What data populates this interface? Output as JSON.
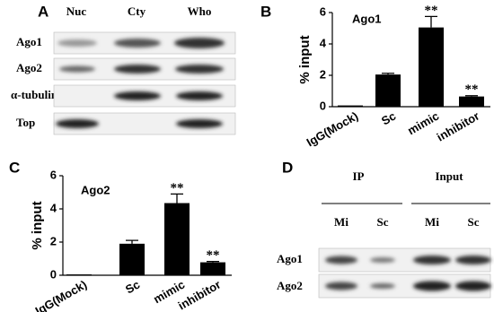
{
  "panels": [
    "A",
    "B",
    "C",
    "D"
  ],
  "blot_a": {
    "columns": [
      "Nuc",
      "Cty",
      "Who"
    ],
    "rows": [
      "Ago1",
      "Ago2",
      "α-tubulin",
      "Top"
    ]
  },
  "blot_d": {
    "groups": [
      "IP",
      "Input"
    ],
    "columns": [
      "Mi",
      "Sc",
      "Mi",
      "Sc"
    ],
    "rows": [
      "Ago1",
      "Ago2"
    ]
  },
  "chart_data": [
    {
      "type": "bar",
      "title": "Ago1",
      "y_label": "% input",
      "categories": [
        "IgG(Mock)",
        "Sc",
        "mimic",
        "inhibitor"
      ],
      "values": [
        0.08,
        2.05,
        5.05,
        0.65
      ],
      "errors": [
        0,
        0.08,
        0.7,
        0.05
      ],
      "color": "#000000",
      "ylim": [
        0,
        6
      ],
      "yticks": [
        0,
        2,
        4,
        6
      ],
      "annotations": [
        {
          "text": "**",
          "category": "mimic"
        },
        {
          "text": "**",
          "category": "inhibitor"
        }
      ]
    },
    {
      "type": "bar",
      "title": "Ago2",
      "y_label": "% input",
      "categories": [
        "IgG(Mock)",
        "Sc",
        "mimic",
        "inhibitor"
      ],
      "values": [
        0.05,
        1.9,
        4.35,
        0.78
      ],
      "errors": [
        0,
        0.2,
        0.55,
        0.05
      ],
      "color": "#000000",
      "ylim": [
        0,
        6
      ],
      "yticks": [
        0,
        2,
        4,
        6
      ],
      "annotations": [
        {
          "text": "**",
          "category": "mimic"
        },
        {
          "text": "**",
          "category": "inhibitor"
        }
      ]
    }
  ]
}
